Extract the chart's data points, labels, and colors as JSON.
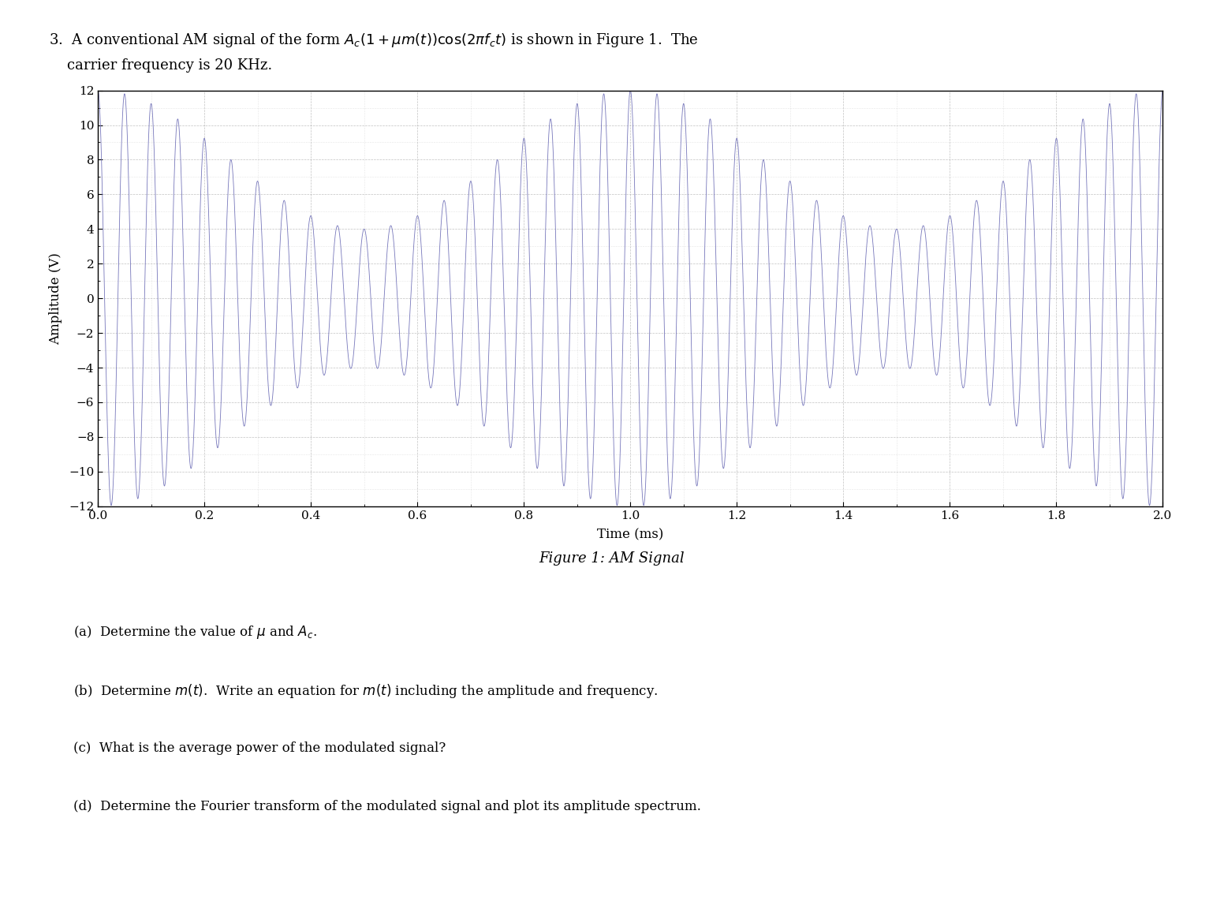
{
  "figure_caption": "Figure 1: AM Signal",
  "xlabel": "Time (ms)",
  "ylabel": "Amplitude (V)",
  "xlim": [
    0,
    2
  ],
  "ylim": [
    -12,
    12
  ],
  "yticks": [
    -12,
    -10,
    -8,
    -6,
    -4,
    -2,
    0,
    2,
    4,
    6,
    8,
    10,
    12
  ],
  "xticks": [
    0,
    0.2,
    0.4,
    0.6,
    0.8,
    1.0,
    1.2,
    1.4,
    1.6,
    1.8,
    2.0
  ],
  "Ac": 8,
  "mu": 0.5,
  "fc_kHz": 20,
  "fm_kHz": 1,
  "t_start": 0,
  "t_end": 2,
  "n_points": 20000,
  "signal_color": "#7777bb",
  "background_color": "#ffffff",
  "grid_major_color": "#999999",
  "grid_minor_color": "#bbbbbb",
  "header_line1": "3.  A conventional AM signal of the form $A_c(1+\\mu m(t))\\cos(2\\pi f_c t)$ is shown in Figure 1.  The",
  "header_line2": "    carrier frequency is 20 KHz.",
  "questions": [
    "(a)  Determine the value of $\\mu$ and $A_c$.",
    "(b)  Determine $m(t)$.  Write an equation for $m(t)$ including the amplitude and frequency.",
    "(c)  What is the average power of the modulated signal?",
    "(d)  Determine the Fourier transform of the modulated signal and plot its amplitude spectrum."
  ],
  "header_fontsize": 13,
  "axis_label_fontsize": 12,
  "tick_fontsize": 11,
  "caption_fontsize": 13,
  "question_fontsize": 12
}
